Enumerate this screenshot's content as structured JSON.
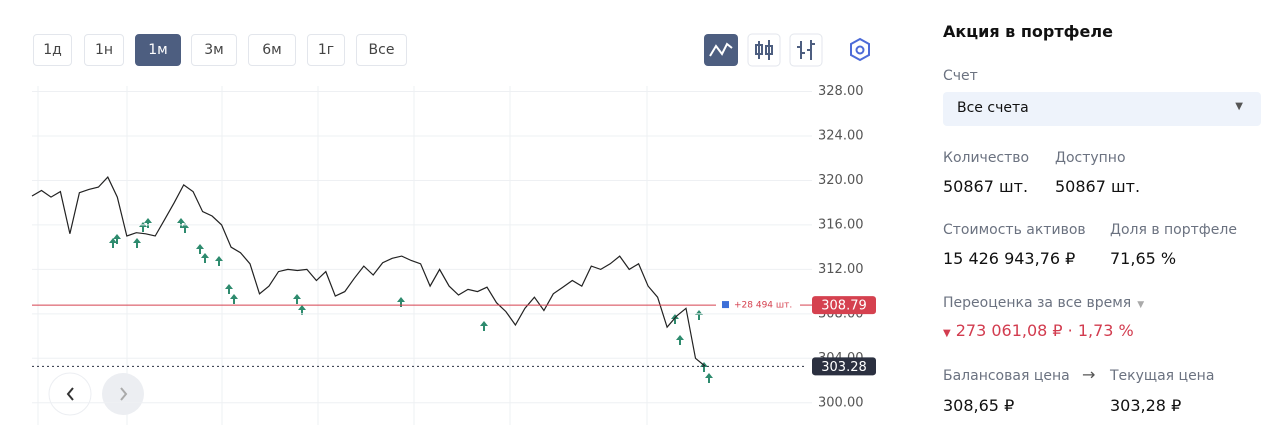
{
  "toolbar": {
    "periods": [
      "1д",
      "1н",
      "1м",
      "3м",
      "6м",
      "1г",
      "Все"
    ],
    "active": "1м"
  },
  "chart_data": {
    "type": "line",
    "series": [
      {
        "color": "#222222",
        "values": [
          318.6,
          319.1,
          318.5,
          319.0,
          315.2,
          318.9,
          319.2,
          319.4,
          320.3,
          318.5,
          315.0,
          315.3,
          315.2,
          315.0,
          316.5,
          318.0,
          319.6,
          319.0,
          317.2,
          316.8,
          316.0,
          314.0,
          313.5,
          312.5,
          309.8,
          310.5,
          311.8,
          312.0,
          311.9,
          312.0,
          311.0,
          311.8,
          309.6,
          310.0,
          311.2,
          312.3,
          311.5,
          312.6,
          313.0,
          313.2,
          312.8,
          312.5,
          310.5,
          312.0,
          310.5,
          309.7,
          310.2,
          310.0,
          310.4,
          309.0,
          308.2,
          307.0,
          308.5,
          309.5,
          308.3,
          309.8,
          310.4,
          311.0,
          310.5,
          312.3,
          312.0,
          312.5,
          313.2,
          312.0,
          312.5,
          310.5,
          309.5,
          306.8,
          307.8,
          308.5,
          304.0,
          303.3
        ]
      }
    ],
    "ylim": [
      298,
      328.5
    ],
    "yticks": [
      {
        "value": 300,
        "label": "300.00"
      },
      {
        "value": 304,
        "label": "304.00"
      },
      {
        "value": 308,
        "label": "308.00"
      },
      {
        "value": 312,
        "label": "312.00"
      },
      {
        "value": 316,
        "label": "316.00"
      },
      {
        "value": 320,
        "label": "320.00"
      },
      {
        "value": 324,
        "label": "324.00"
      },
      {
        "value": 328,
        "label": "328.00"
      }
    ],
    "grid": true,
    "reference_lines": [
      {
        "value": 308.79,
        "color": "#d5414f",
        "style": "solid",
        "annotation": "+28 494 шт."
      },
      {
        "value": 303.28,
        "color": "#2b3040",
        "style": "dotted"
      }
    ]
  },
  "panel": {
    "title": "Акция в портфеле",
    "account_label": "Счет",
    "account_value": "Все счета",
    "fields": [
      {
        "label": "Количество",
        "value": "50867 шт."
      },
      {
        "label": "Доступно",
        "value": "50867 шт."
      },
      {
        "label": "Стоимость активов",
        "value": "15 426 943,76 ₽"
      },
      {
        "label": "Доля в портфеле",
        "value": "71,65 %"
      }
    ],
    "revaluation": {
      "label": "Переоценка за все время",
      "value": "273 061,08 ₽ · 1,73 %"
    },
    "balance_label": "Балансовая цена",
    "balance_value": "308,65 ₽",
    "current_label": "Текущая цена",
    "current_value": "303,28 ₽"
  }
}
